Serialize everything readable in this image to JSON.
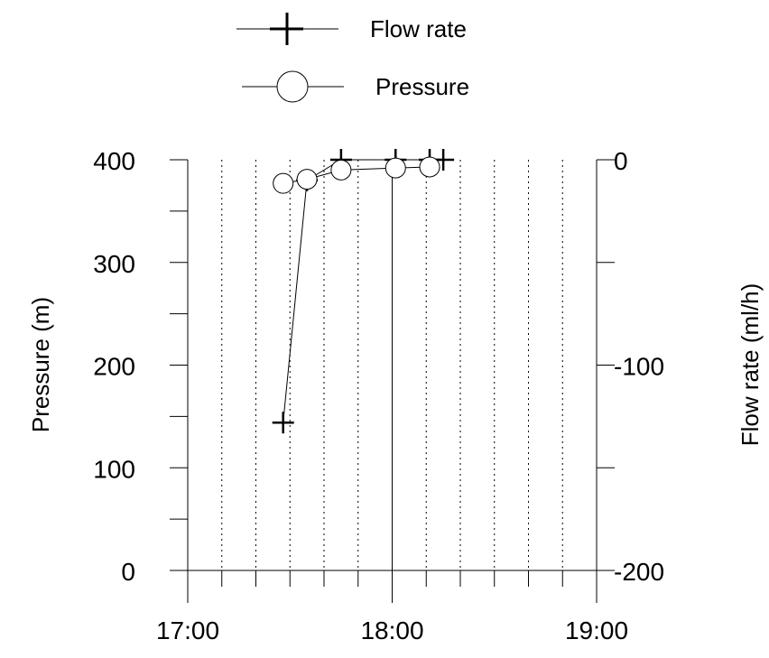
{
  "chart_data": {
    "type": "line",
    "title": "",
    "legend": {
      "position": "top-center",
      "entries": [
        {
          "label": "Flow rate",
          "marker": "plus"
        },
        {
          "label": "Pressure",
          "marker": "circle"
        }
      ]
    },
    "x_axis": {
      "range": [
        "17:00",
        "19:00"
      ],
      "tick_labels": [
        "17:00",
        "18:00",
        "19:00"
      ],
      "minor_gridlines": "dotted, every 10 minutes",
      "major_gridline": "18:00"
    },
    "y_left": {
      "label": "Pressure (m)",
      "range": [
        0,
        400
      ],
      "tick_labels": [
        "0",
        "100",
        "200",
        "300",
        "400"
      ]
    },
    "y_right": {
      "label": "Flow rate (ml/h)",
      "range": [
        -200,
        0
      ],
      "tick_labels": [
        "-200",
        "-100",
        "0"
      ]
    },
    "series": [
      {
        "name": "Flow rate",
        "axis": "right",
        "marker": "plus",
        "x": [
          "17:28",
          "17:35",
          "17:45",
          "18:01",
          "18:11",
          "18:15"
        ],
        "y": [
          -128,
          -10,
          0,
          0,
          0,
          0
        ]
      },
      {
        "name": "Pressure",
        "axis": "left",
        "marker": "circle",
        "x": [
          "17:28",
          "17:35",
          "17:45",
          "18:01",
          "18:11"
        ],
        "y": [
          377,
          381,
          390,
          392,
          393
        ]
      }
    ]
  }
}
